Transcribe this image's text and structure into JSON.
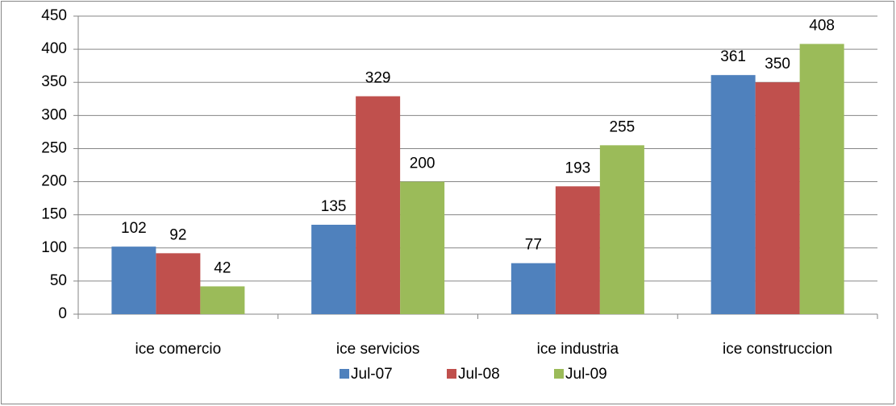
{
  "chart_data": {
    "type": "bar",
    "categories": [
      "ice comercio",
      "ice servicios",
      "ice industria",
      "ice construccion"
    ],
    "series": [
      {
        "name": "Jul-07",
        "color": "#4f81bd",
        "values": [
          102,
          135,
          77,
          361
        ]
      },
      {
        "name": "Jul-08",
        "color": "#c0504d",
        "values": [
          92,
          329,
          193,
          350
        ]
      },
      {
        "name": "Jul-09",
        "color": "#9bbb59",
        "values": [
          42,
          200,
          255,
          408
        ]
      }
    ],
    "ylim": [
      0,
      450
    ],
    "yticks": [
      0,
      50,
      100,
      150,
      200,
      250,
      300,
      350,
      400,
      450
    ],
    "grid": true,
    "legend": "bottom",
    "data_labels": true
  }
}
